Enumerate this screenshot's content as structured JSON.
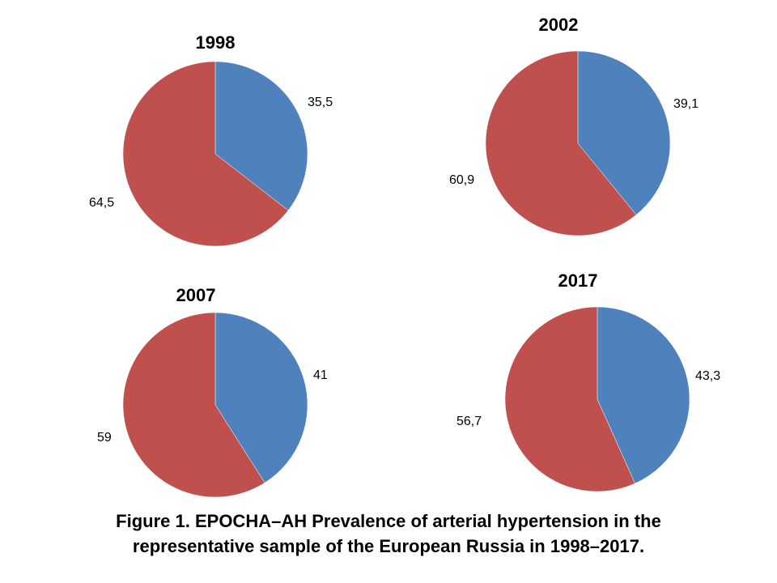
{
  "colors": {
    "series_a": "#4F81BD",
    "series_b": "#C0504D"
  },
  "chart_data": [
    {
      "type": "pie",
      "title": "1998",
      "slices": [
        {
          "value": 35.5,
          "label": "35,5",
          "color": "#4F81BD"
        },
        {
          "value": 64.5,
          "label": "64,5",
          "color": "#C0504D"
        }
      ]
    },
    {
      "type": "pie",
      "title": "2002",
      "slices": [
        {
          "value": 39.1,
          "label": "39,1",
          "color": "#4F81BD"
        },
        {
          "value": 60.9,
          "label": "60,9",
          "color": "#C0504D"
        }
      ]
    },
    {
      "type": "pie",
      "title": "2007",
      "slices": [
        {
          "value": 41,
          "label": "41",
          "color": "#4F81BD"
        },
        {
          "value": 59,
          "label": "59",
          "color": "#C0504D"
        }
      ]
    },
    {
      "type": "pie",
      "title": "2017",
      "slices": [
        {
          "value": 43.3,
          "label": "43,3",
          "color": "#4F81BD"
        },
        {
          "value": 56.7,
          "label": "56,7",
          "color": "#C0504D"
        }
      ]
    }
  ],
  "caption": {
    "line1": "Figure 1. EPOCHA–AH Prevalence of arterial hypertension in the",
    "line2": "representative sample of the European Russia in 1998–2017."
  }
}
